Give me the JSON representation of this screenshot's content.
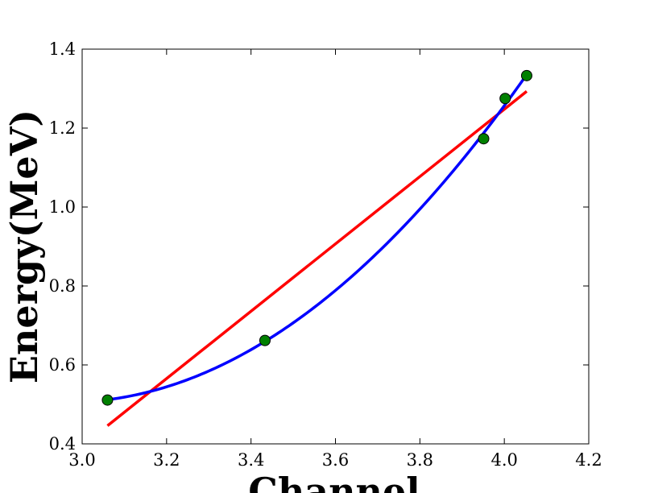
{
  "chart_data": {
    "type": "scatter",
    "title": "",
    "xlabel": "Channel",
    "ylabel": "Energy(MeV)",
    "xlim": [
      3.0,
      4.2
    ],
    "ylim": [
      0.4,
      1.4
    ],
    "x_ticks": [
      "3.0",
      "3.2",
      "3.4",
      "3.6",
      "3.8",
      "4.0",
      "4.2"
    ],
    "y_ticks": [
      "0.4",
      "0.6",
      "0.8",
      "1.0",
      "1.2",
      "1.4"
    ],
    "grid": false,
    "legend": "none",
    "series": [
      {
        "kind": "scatter",
        "color": "#008000",
        "x": [
          3.06,
          3.433,
          3.951,
          4.002,
          4.053
        ],
        "y": [
          0.511,
          0.662,
          1.173,
          1.275,
          1.333
        ]
      },
      {
        "kind": "line",
        "fit": "quadratic",
        "color": "#0000ff",
        "x": [
          3.06,
          3.433,
          3.951,
          4.002,
          4.053
        ],
        "y": [
          0.511,
          0.662,
          1.173,
          1.275,
          1.333
        ]
      },
      {
        "kind": "line",
        "fit": "linear",
        "color": "#ff0000",
        "x": [
          3.06,
          4.053
        ],
        "y": [
          0.446,
          1.293
        ]
      }
    ]
  }
}
